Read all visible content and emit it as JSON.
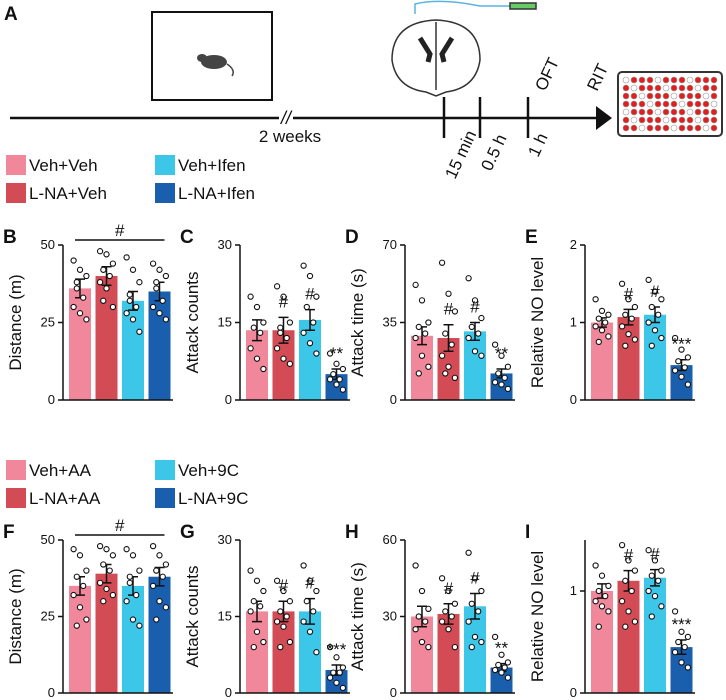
{
  "panel_a": {
    "letter": "A",
    "break_mark": "//",
    "duration": "2 weeks",
    "times": [
      "15 min",
      "0.5 h",
      "1 h"
    ],
    "tests": [
      "OFT",
      "RIT"
    ]
  },
  "legends": [
    [
      {
        "name": "Veh+Veh",
        "color": "#f0879a"
      },
      {
        "name": "L-NA+Veh",
        "color": "#d24b55"
      },
      {
        "name": "Veh+Ifen",
        "color": "#3cc6e8"
      },
      {
        "name": "L-NA+Ifen",
        "color": "#1a5fae"
      }
    ],
    [
      {
        "name": "Veh+AA",
        "color": "#f0879a"
      },
      {
        "name": "L-NA+AA",
        "color": "#d24b55"
      },
      {
        "name": "Veh+9C",
        "color": "#3cc6e8"
      },
      {
        "name": "L-NA+9C",
        "color": "#1a5fae"
      }
    ]
  ],
  "chart_data": [
    {
      "type": "bar",
      "panel": "B",
      "ylabel": "Distance (m)",
      "ylim": [
        0,
        50
      ],
      "yticks": [
        0,
        25,
        50
      ],
      "values": [
        36,
        40,
        32,
        35
      ],
      "errors": [
        3,
        3,
        3,
        3
      ],
      "points": [
        [
          45,
          42,
          40,
          36,
          33,
          30,
          28,
          26,
          38
        ],
        [
          48,
          47,
          44,
          42,
          40,
          38,
          36,
          30,
          32
        ],
        [
          46,
          42,
          38,
          32,
          30,
          28,
          26,
          22,
          34
        ],
        [
          44,
          42,
          40,
          36,
          32,
          30,
          28,
          26,
          38
        ]
      ],
      "bracket": "#"
    },
    {
      "type": "bar",
      "panel": "C",
      "ylabel": "Attack counts",
      "ylim": [
        0,
        30
      ],
      "yticks": [
        0,
        15,
        30
      ],
      "values": [
        13.5,
        13.5,
        15.5,
        5
      ],
      "errors": [
        2,
        2.5,
        2,
        1
      ],
      "points": [
        [
          20,
          18,
          15,
          14,
          13,
          10,
          8,
          6
        ],
        [
          22,
          20,
          15,
          14,
          12,
          10,
          8,
          7,
          13
        ],
        [
          26,
          24,
          20,
          18,
          15,
          13,
          11,
          9
        ],
        [
          9,
          7,
          6,
          5,
          4,
          4,
          3,
          2
        ]
      ],
      "marks": [
        "",
        "#",
        "#",
        "**"
      ]
    },
    {
      "type": "bar",
      "panel": "D",
      "ylabel": "Attack time (s)",
      "ylim": [
        0,
        70
      ],
      "yticks": [
        0,
        35,
        70
      ],
      "values": [
        29,
        28,
        31,
        12
      ],
      "errors": [
        4,
        6,
        4,
        2
      ],
      "points": [
        [
          52,
          45,
          35,
          33,
          30,
          28,
          20,
          15,
          12
        ],
        [
          62,
          48,
          40,
          30,
          25,
          20,
          15,
          10,
          12
        ],
        [
          55,
          45,
          37,
          33,
          30,
          28,
          22,
          20
        ],
        [
          25,
          20,
          15,
          12,
          10,
          8,
          7,
          5
        ]
      ],
      "marks": [
        "",
        "#",
        "#",
        "**"
      ]
    },
    {
      "type": "bar",
      "panel": "E",
      "ylabel": "Relative NO level",
      "ylim": [
        0,
        2
      ],
      "yticks": [
        0,
        1,
        2
      ],
      "values": [
        1.0,
        1.07,
        1.1,
        0.45
      ],
      "errors": [
        0.06,
        0.1,
        0.1,
        0.07
      ],
      "points": [
        [
          1.3,
          1.15,
          1.1,
          1.05,
          1.0,
          0.95,
          0.9,
          0.82,
          0.75
        ],
        [
          1.5,
          1.3,
          1.2,
          1.1,
          1.05,
          0.95,
          0.85,
          0.78,
          0.7
        ],
        [
          1.55,
          1.4,
          1.3,
          1.2,
          1.1,
          1.0,
          0.9,
          0.8,
          0.7
        ],
        [
          0.8,
          0.65,
          0.55,
          0.5,
          0.42,
          0.38,
          0.3,
          0.2
        ]
      ],
      "marks": [
        "",
        "#",
        "#",
        "***"
      ]
    },
    {
      "type": "bar",
      "panel": "F",
      "ylabel": "Distance (m)",
      "ylim": [
        0,
        50
      ],
      "yticks": [
        0,
        25,
        50
      ],
      "values": [
        35,
        39,
        35,
        38
      ],
      "errors": [
        3,
        3,
        3,
        3
      ],
      "points": [
        [
          47,
          45,
          40,
          38,
          35,
          32,
          28,
          24,
          22
        ],
        [
          48,
          47,
          45,
          42,
          40,
          36,
          34,
          32,
          30
        ],
        [
          47,
          45,
          40,
          38,
          32,
          30,
          24,
          22,
          36
        ],
        [
          48,
          45,
          42,
          40,
          38,
          35,
          30,
          28,
          24
        ]
      ],
      "bracket": "#"
    },
    {
      "type": "bar",
      "panel": "G",
      "ylabel": "Attack counts",
      "ylim": [
        0,
        30
      ],
      "yticks": [
        0,
        15,
        30
      ],
      "values": [
        16,
        16,
        16,
        4.5
      ],
      "errors": [
        2,
        2,
        2.5,
        1
      ],
      "points": [
        [
          24,
          22,
          20,
          18,
          17,
          16,
          12,
          10,
          9
        ],
        [
          22,
          20,
          18,
          16,
          15,
          14,
          13,
          10,
          9
        ],
        [
          25,
          22,
          20,
          18,
          16,
          14,
          12,
          8
        ],
        [
          9,
          7,
          5,
          4,
          4,
          3,
          2,
          1
        ]
      ],
      "marks": [
        "",
        "#",
        "#",
        "***"
      ]
    },
    {
      "type": "bar",
      "panel": "H",
      "ylabel": "Attack time (s)",
      "ylim": [
        0,
        60
      ],
      "yticks": [
        0,
        30,
        60
      ],
      "values": [
        30,
        31,
        34,
        10
      ],
      "errors": [
        4,
        4,
        5,
        1.5
      ],
      "points": [
        [
          50,
          40,
          33,
          30,
          28,
          25,
          20,
          18
        ],
        [
          45,
          40,
          35,
          32,
          30,
          28,
          25,
          18
        ],
        [
          55,
          45,
          40,
          35,
          32,
          28,
          22,
          20,
          18
        ],
        [
          22,
          15,
          12,
          11,
          10,
          9,
          8,
          6
        ]
      ],
      "marks": [
        "",
        "#",
        "#",
        "**"
      ]
    },
    {
      "type": "bar",
      "panel": "I",
      "ylabel": "Relative NO level",
      "ylim": [
        0,
        1.5
      ],
      "yticks": [
        0,
        1
      ],
      "values": [
        1.0,
        1.1,
        1.13,
        0.45
      ],
      "errors": [
        0.07,
        0.1,
        0.08,
        0.07
      ],
      "points": [
        [
          1.25,
          1.15,
          1.05,
          1.0,
          0.95,
          0.9,
          0.85,
          0.8,
          0.65
        ],
        [
          1.45,
          1.3,
          1.2,
          1.1,
          1.0,
          0.9,
          0.8,
          0.7,
          0.65
        ],
        [
          1.4,
          1.3,
          1.2,
          1.15,
          1.1,
          1.0,
          0.95,
          0.85,
          0.75
        ],
        [
          0.8,
          0.6,
          0.55,
          0.5,
          0.45,
          0.4,
          0.3,
          0.25
        ]
      ],
      "marks": [
        "",
        "#",
        "#",
        "***"
      ]
    }
  ]
}
